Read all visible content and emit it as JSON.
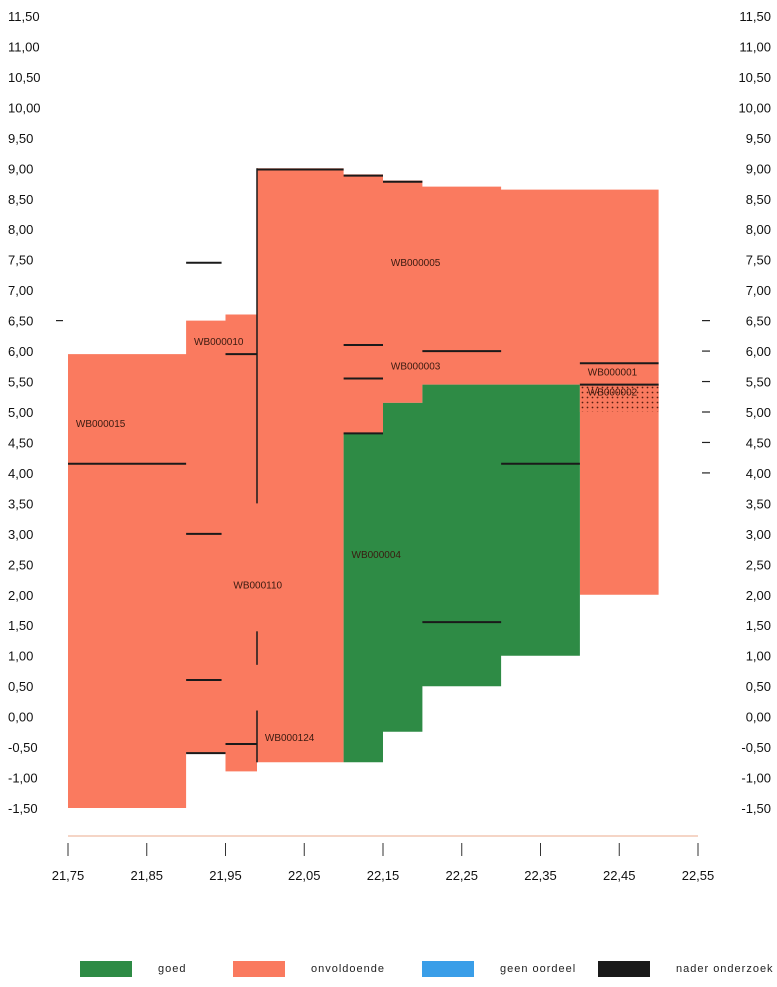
{
  "chart_data": {
    "type": "area",
    "x_ticks": [
      "21,75",
      "21,85",
      "21,95",
      "22,05",
      "22,15",
      "22,25",
      "22,35",
      "22,45",
      "22,55"
    ],
    "y_ticks_left": [
      "11,50",
      "11,00",
      "10,50",
      "10,00",
      "9,50",
      "9,00",
      "8,50",
      "8,00",
      "7,50",
      "7,00",
      "6,50",
      "6,00",
      "5,50",
      "5,00",
      "4,50",
      "4,00",
      "3,50",
      "3,00",
      "2,50",
      "2,00",
      "1,50",
      "1,00",
      "0,50",
      "0,00",
      "-0,50",
      "-1,00",
      "-1,50"
    ],
    "y_ticks_right": [
      "11,50",
      "11,00",
      "10,50",
      "10,00",
      "9,50",
      "9,00",
      "8,50",
      "8,00",
      "7,50",
      "7,00",
      "6,50",
      "6,00",
      "5,50",
      "5,00",
      "4,50",
      "4,00",
      "3,50",
      "3,00",
      "2,50",
      "2,00",
      "1,50",
      "1,00",
      "0,50",
      "0,00",
      "-0,50",
      "-1,00",
      "-1,50"
    ],
    "xlim": [
      21.75,
      22.55
    ],
    "ylim": [
      -1.5,
      11.5
    ],
    "colors": {
      "goed": "#2e8b45",
      "onvoldoende": "#fa7a5f",
      "geen_oordeel": "#3a9ee8",
      "nader_onderzoek": "#1a1a1a"
    },
    "blocks": [
      {
        "label": "WB000015",
        "status": "onvoldoende",
        "points": [
          [
            21.75,
            5.95
          ],
          [
            21.9,
            5.95
          ],
          [
            21.9,
            6.5
          ],
          [
            21.95,
            6.5
          ],
          [
            21.95,
            6.6
          ],
          [
            21.99,
            6.6
          ],
          [
            21.99,
            9.0
          ],
          [
            22.1,
            9.0
          ],
          [
            22.1,
            8.9
          ],
          [
            22.15,
            8.9
          ],
          [
            22.15,
            8.8
          ],
          [
            22.2,
            8.8
          ],
          [
            22.2,
            8.7
          ],
          [
            22.3,
            8.7
          ],
          [
            22.3,
            8.65
          ],
          [
            22.5,
            8.65
          ],
          [
            22.5,
            2.0
          ],
          [
            22.4,
            2.0
          ],
          [
            22.4,
            5.45
          ],
          [
            22.2,
            5.45
          ],
          [
            22.2,
            5.15
          ],
          [
            22.15,
            5.15
          ],
          [
            22.15,
            4.65
          ],
          [
            22.1,
            4.65
          ],
          [
            22.1,
            -0.75
          ],
          [
            21.99,
            -0.75
          ],
          [
            21.99,
            -0.9
          ],
          [
            21.95,
            -0.9
          ],
          [
            21.95,
            -0.6
          ],
          [
            21.9,
            -0.6
          ],
          [
            21.9,
            -1.5
          ],
          [
            21.75,
            -1.5
          ]
        ]
      },
      {
        "label": "WB000004",
        "status": "goed",
        "points": [
          [
            22.1,
            4.65
          ],
          [
            22.15,
            4.65
          ],
          [
            22.15,
            5.15
          ],
          [
            22.2,
            5.15
          ],
          [
            22.2,
            5.45
          ],
          [
            22.4,
            5.45
          ],
          [
            22.4,
            1.0
          ],
          [
            22.3,
            1.0
          ],
          [
            22.3,
            0.5
          ],
          [
            22.2,
            0.5
          ],
          [
            22.2,
            -0.25
          ],
          [
            22.15,
            -0.25
          ],
          [
            22.15,
            -0.75
          ],
          [
            22.1,
            -0.75
          ]
        ]
      }
    ],
    "block_labels": [
      {
        "text": "WB000015",
        "x": 21.76,
        "y": 4.75
      },
      {
        "text": "WB000010",
        "x": 21.91,
        "y": 6.1
      },
      {
        "text": "WB000110",
        "x": 21.96,
        "y": 2.1
      },
      {
        "text": "WB000124",
        "x": 22.0,
        "y": -0.4
      },
      {
        "text": "WB000005",
        "x": 22.16,
        "y": 7.4
      },
      {
        "text": "WB000003",
        "x": 22.16,
        "y": 5.7
      },
      {
        "text": "WB000004",
        "x": 22.11,
        "y": 2.6
      },
      {
        "text": "WB000001",
        "x": 22.41,
        "y": 5.6
      },
      {
        "text": "WB000002",
        "x": 22.41,
        "y": 5.27
      }
    ],
    "segments": [
      {
        "x1": 21.75,
        "x2": 21.9,
        "y": 4.15
      },
      {
        "x1": 21.9,
        "x2": 21.945,
        "y": 7.45
      },
      {
        "x1": 21.9,
        "x2": 21.945,
        "y": 3.0
      },
      {
        "x1": 21.9,
        "x2": 21.945,
        "y": 0.6
      },
      {
        "x1": 21.9,
        "x2": 21.95,
        "y": -0.6
      },
      {
        "x1": 21.95,
        "x2": 21.99,
        "y": -0.45
      },
      {
        "x1": 21.95,
        "x2": 21.99,
        "y": 5.95
      },
      {
        "x1": 21.99,
        "x2": 22.1,
        "y": 8.98
      },
      {
        "x1": 22.1,
        "x2": 22.15,
        "y": 8.88
      },
      {
        "x1": 22.15,
        "x2": 22.2,
        "y": 8.78
      },
      {
        "x1": 22.1,
        "x2": 22.15,
        "y": 6.1
      },
      {
        "x1": 22.1,
        "x2": 22.15,
        "y": 5.55
      },
      {
        "x1": 22.1,
        "x2": 22.15,
        "y": 4.65
      },
      {
        "x1": 22.2,
        "x2": 22.3,
        "y": 6.0
      },
      {
        "x1": 22.2,
        "x2": 22.3,
        "y": 1.55
      },
      {
        "x1": 22.3,
        "x2": 22.4,
        "y": 4.15
      },
      {
        "x1": 22.4,
        "x2": 22.5,
        "y": 5.8
      },
      {
        "x1": 22.4,
        "x2": 22.5,
        "y": 5.45
      }
    ],
    "v_segments": [
      {
        "x": 21.99,
        "y1": 9.0,
        "y2": 3.5
      },
      {
        "x": 21.99,
        "y1": 1.4,
        "y2": 0.85
      },
      {
        "x": 21.99,
        "y1": 0.1,
        "y2": -0.75
      }
    ],
    "hatch_band": {
      "x1": 22.4,
      "x2": 22.5,
      "y1": 5.0,
      "y2": 5.45
    },
    "right_dashes_at": [
      6.5,
      6.0,
      5.5,
      5.0,
      4.5,
      4.0
    ],
    "left_dash_at": [
      6.5
    ],
    "legend": [
      "goed",
      "onvoldoende",
      "geen oordeel",
      "nader onderzoek"
    ]
  },
  "legend": {
    "items": [
      {
        "label": "goed",
        "color": "#2e8b45"
      },
      {
        "label": "onvoldoende",
        "color": "#fa7a5f"
      },
      {
        "label": "geen oordeel",
        "color": "#3a9ee8"
      },
      {
        "label": "nader onderzoek",
        "color": "#1a1a1a"
      }
    ]
  }
}
